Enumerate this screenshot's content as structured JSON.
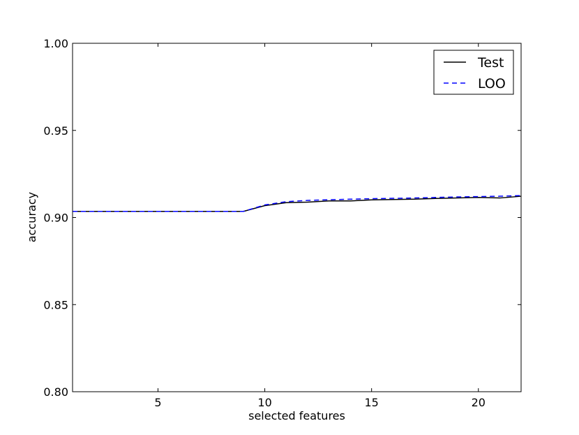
{
  "chart_data": {
    "type": "line",
    "xlabel": "selected features",
    "ylabel": "accuracy",
    "xlim": [
      1,
      22
    ],
    "ylim": [
      0.8,
      1.0
    ],
    "x_ticks": [
      5,
      10,
      15,
      20
    ],
    "y_ticks": [
      0.8,
      0.85,
      0.9,
      0.95,
      1.0
    ],
    "x_tick_labels": [
      "5",
      "10",
      "15",
      "20"
    ],
    "y_tick_labels": [
      "0.80",
      "0.85",
      "0.90",
      "0.95",
      "1.00"
    ],
    "grid": false,
    "legend_position": "top-right",
    "x": [
      1,
      2,
      3,
      4,
      5,
      6,
      7,
      8,
      9,
      10,
      11,
      12,
      13,
      14,
      15,
      16,
      17,
      18,
      19,
      20,
      21,
      22
    ],
    "series": [
      {
        "name": "Test",
        "color": "#000000",
        "style": "solid",
        "values": [
          0.9035,
          0.9035,
          0.9035,
          0.9035,
          0.9035,
          0.9035,
          0.9035,
          0.9035,
          0.9035,
          0.9068,
          0.9085,
          0.9088,
          0.9095,
          0.9095,
          0.9101,
          0.9103,
          0.9105,
          0.9109,
          0.9112,
          0.9115,
          0.9112,
          0.9122
        ]
      },
      {
        "name": "LOO",
        "color": "#0000ff",
        "style": "dashed",
        "values": [
          0.9035,
          0.9035,
          0.9035,
          0.9035,
          0.9035,
          0.9035,
          0.9035,
          0.9035,
          0.9035,
          0.9072,
          0.9091,
          0.9098,
          0.9102,
          0.9105,
          0.9108,
          0.911,
          0.9112,
          0.9115,
          0.9118,
          0.912,
          0.9122,
          0.9126
        ]
      }
    ]
  }
}
